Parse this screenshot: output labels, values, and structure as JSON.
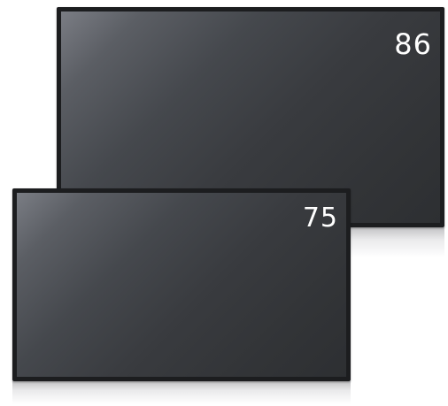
{
  "displays": [
    {
      "size_label": "86"
    },
    {
      "size_label": "75"
    }
  ],
  "colors": {
    "background": "#ffffff",
    "bezel": "#1c1d1f",
    "screen_highlight": "#7a7d84",
    "screen_dark": "#2d2f32",
    "label_text": "#ffffff"
  }
}
